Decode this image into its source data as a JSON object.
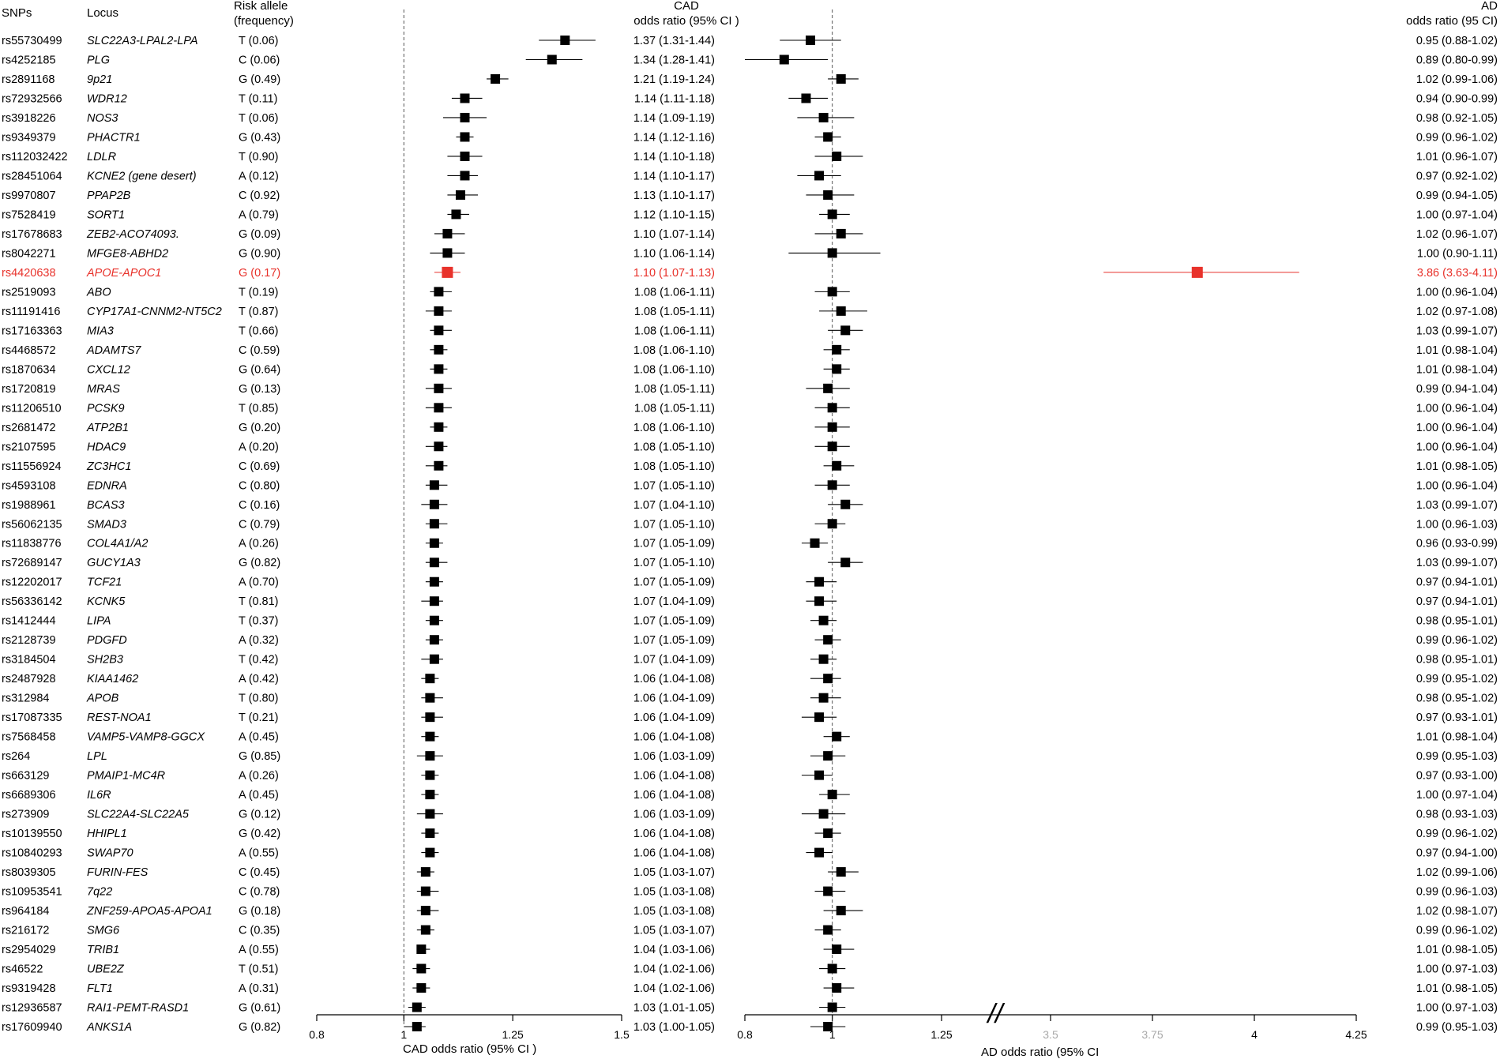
{
  "columns": {
    "snp": "SNPs",
    "locus": "Locus",
    "risk_allele": [
      "Risk allele",
      "(frequency)"
    ],
    "cad_header": [
      "CAD",
      "odds ratio (95% CI )"
    ],
    "ad_header": [
      "AD",
      "odds ratio (95 CI)"
    ]
  },
  "colors": {
    "normal": "#000000",
    "highlight": "#e8322b",
    "reference_line": "#555555"
  },
  "chart_data": [
    {
      "type": "forest",
      "title": "CAD",
      "xlabel": "CAD odds ratio (95% CI    )",
      "xlim": [
        0.8,
        1.5
      ],
      "ticks": [
        0.8,
        1,
        1.25,
        1.5
      ],
      "tick_labels": [
        "0.8",
        "1",
        "1.25",
        "1.5"
      ],
      "reference_line": 1
    },
    {
      "type": "forest",
      "title": "AD",
      "xlabel": "AD odds ratio (95% CI",
      "xlim": [
        0.8,
        4.25
      ],
      "axis_break": "//",
      "ticks": [
        0.8,
        1,
        1.25,
        3.5,
        3.75,
        4,
        4.25
      ],
      "tick_labels": [
        "0.8",
        "1",
        "1.25",
        "3.5",
        "3.75",
        "4",
        "4.25"
      ],
      "reference_line": 1
    }
  ],
  "rows": [
    {
      "snp": "rs55730499",
      "locus": "SLC22A3-LPAL2-LPA",
      "allele": "T (0.06)",
      "cad": [
        1.37,
        1.31,
        1.44
      ],
      "cad_label": "1.37 (1.31-1.44)",
      "ad": [
        0.95,
        0.88,
        1.02
      ],
      "ad_label": "0.95 (0.88-1.02)"
    },
    {
      "snp": "rs4252185",
      "locus": "PLG",
      "allele": "C (0.06)",
      "cad": [
        1.34,
        1.28,
        1.41
      ],
      "cad_label": "1.34 (1.28-1.41)",
      "ad": [
        0.89,
        0.8,
        0.99
      ],
      "ad_label": "0.89 (0.80-0.99)"
    },
    {
      "snp": "rs2891168",
      "locus": "9p21",
      "allele": "G (0.49)",
      "cad": [
        1.21,
        1.19,
        1.24
      ],
      "cad_label": "1.21 (1.19-1.24)",
      "ad": [
        1.02,
        0.99,
        1.06
      ],
      "ad_label": "1.02 (0.99-1.06)"
    },
    {
      "snp": "rs72932566",
      "locus": "WDR12",
      "allele": "T (0.11)",
      "cad": [
        1.14,
        1.11,
        1.18
      ],
      "cad_label": "1.14 (1.11-1.18)",
      "ad": [
        0.94,
        0.9,
        0.99
      ],
      "ad_label": "0.94 (0.90-0.99)"
    },
    {
      "snp": "rs3918226",
      "locus": "NOS3",
      "allele": "T (0.06)",
      "cad": [
        1.14,
        1.09,
        1.19
      ],
      "cad_label": "1.14 (1.09-1.19)",
      "ad": [
        0.98,
        0.92,
        1.05
      ],
      "ad_label": "0.98 (0.92-1.05)"
    },
    {
      "snp": "rs9349379",
      "locus": "PHACTR1",
      "allele": "G (0.43)",
      "cad": [
        1.14,
        1.12,
        1.16
      ],
      "cad_label": "1.14 (1.12-1.16)",
      "ad": [
        0.99,
        0.96,
        1.02
      ],
      "ad_label": "0.99 (0.96-1.02)"
    },
    {
      "snp": "rs112032422",
      "locus": "LDLR",
      "allele": "T (0.90)",
      "cad": [
        1.14,
        1.1,
        1.18
      ],
      "cad_label": "1.14 (1.10-1.18)",
      "ad": [
        1.01,
        0.96,
        1.07
      ],
      "ad_label": "1.01 (0.96-1.07)"
    },
    {
      "snp": "rs28451064",
      "locus": "KCNE2 (gene desert)",
      "allele": "A (0.12)",
      "cad": [
        1.14,
        1.1,
        1.17
      ],
      "cad_label": "1.14 (1.10-1.17)",
      "ad": [
        0.97,
        0.92,
        1.02
      ],
      "ad_label": "0.97 (0.92-1.02)"
    },
    {
      "snp": "rs9970807",
      "locus": "PPAP2B",
      "allele": "C (0.92)",
      "cad": [
        1.13,
        1.1,
        1.17
      ],
      "cad_label": "1.13 (1.10-1.17)",
      "ad": [
        0.99,
        0.94,
        1.05
      ],
      "ad_label": "0.99 (0.94-1.05)"
    },
    {
      "snp": "rs7528419",
      "locus": "SORT1",
      "allele": "A (0.79)",
      "cad": [
        1.12,
        1.1,
        1.15
      ],
      "cad_label": "1.12 (1.10-1.15)",
      "ad": [
        1.0,
        0.97,
        1.04
      ],
      "ad_label": "1.00 (0.97-1.04)"
    },
    {
      "snp": "rs17678683",
      "locus": "ZEB2-ACO74093.",
      "allele": "G (0.09)",
      "cad": [
        1.1,
        1.07,
        1.14
      ],
      "cad_label": "1.10 (1.07-1.14)",
      "ad": [
        1.02,
        0.96,
        1.07
      ],
      "ad_label": "1.02 (0.96-1.07)"
    },
    {
      "snp": "rs8042271",
      "locus": "MFGE8-ABHD2",
      "allele": "G (0.90)",
      "cad": [
        1.1,
        1.06,
        1.14
      ],
      "cad_label": "1.10 (1.06-1.14)",
      "ad": [
        1.0,
        0.9,
        1.11
      ],
      "ad_label": "1.00 (0.90-1.11)"
    },
    {
      "snp": "rs4420638",
      "locus": "APOE-APOC1",
      "allele": "G (0.17)",
      "cad": [
        1.1,
        1.07,
        1.13
      ],
      "cad_label": "1.10 (1.07-1.13)",
      "ad": [
        3.86,
        3.63,
        4.11
      ],
      "ad_label": "3.86 (3.63-4.11)",
      "highlight": true
    },
    {
      "snp": "rs2519093",
      "locus": "ABO",
      "allele": "T (0.19)",
      "cad": [
        1.08,
        1.06,
        1.11
      ],
      "cad_label": "1.08 (1.06-1.11)",
      "ad": [
        1.0,
        0.96,
        1.04
      ],
      "ad_label": "1.00 (0.96-1.04)"
    },
    {
      "snp": "rs11191416",
      "locus": "CYP17A1-CNNM2-NT5C2",
      "allele": "T (0.87)",
      "cad": [
        1.08,
        1.05,
        1.11
      ],
      "cad_label": "1.08 (1.05-1.11)",
      "ad": [
        1.02,
        0.97,
        1.08
      ],
      "ad_label": "1.02 (0.97-1.08)"
    },
    {
      "snp": "rs17163363",
      "locus": "MIA3",
      "allele": "T (0.66)",
      "cad": [
        1.08,
        1.06,
        1.11
      ],
      "cad_label": "1.08 (1.06-1.11)",
      "ad": [
        1.03,
        0.99,
        1.07
      ],
      "ad_label": "1.03 (0.99-1.07)"
    },
    {
      "snp": "rs4468572",
      "locus": "ADAMTS7",
      "allele": "C (0.59)",
      "cad": [
        1.08,
        1.06,
        1.1
      ],
      "cad_label": "1.08 (1.06-1.10)",
      "ad": [
        1.01,
        0.98,
        1.04
      ],
      "ad_label": "1.01 (0.98-1.04)"
    },
    {
      "snp": "rs1870634",
      "locus": "CXCL12",
      "allele": "G (0.64)",
      "cad": [
        1.08,
        1.06,
        1.1
      ],
      "cad_label": "1.08 (1.06-1.10)",
      "ad": [
        1.01,
        0.98,
        1.04
      ],
      "ad_label": "1.01 (0.98-1.04)"
    },
    {
      "snp": "rs1720819",
      "locus": "MRAS",
      "allele": "G (0.13)",
      "cad": [
        1.08,
        1.05,
        1.11
      ],
      "cad_label": "1.08 (1.05-1.11)",
      "ad": [
        0.99,
        0.94,
        1.04
      ],
      "ad_label": "0.99 (0.94-1.04)"
    },
    {
      "snp": "rs11206510",
      "locus": "PCSK9",
      "allele": "T (0.85)",
      "cad": [
        1.08,
        1.05,
        1.11
      ],
      "cad_label": "1.08 (1.05-1.11)",
      "ad": [
        1.0,
        0.96,
        1.04
      ],
      "ad_label": "1.00 (0.96-1.04)"
    },
    {
      "snp": "rs2681472",
      "locus": "ATP2B1",
      "allele": "G (0.20)",
      "cad": [
        1.08,
        1.06,
        1.1
      ],
      "cad_label": "1.08 (1.06-1.10)",
      "ad": [
        1.0,
        0.96,
        1.04
      ],
      "ad_label": "1.00 (0.96-1.04)"
    },
    {
      "snp": "rs2107595",
      "locus": "HDAC9",
      "allele": "A (0.20)",
      "cad": [
        1.08,
        1.05,
        1.1
      ],
      "cad_label": "1.08 (1.05-1.10)",
      "ad": [
        1.0,
        0.96,
        1.04
      ],
      "ad_label": "1.00 (0.96-1.04)"
    },
    {
      "snp": "rs11556924",
      "locus": "ZC3HC1",
      "allele": "C (0.69)",
      "cad": [
        1.08,
        1.05,
        1.1
      ],
      "cad_label": "1.08 (1.05-1.10)",
      "ad": [
        1.01,
        0.98,
        1.05
      ],
      "ad_label": "1.01 (0.98-1.05)"
    },
    {
      "snp": "rs4593108",
      "locus": "EDNRA",
      "allele": "C (0.80)",
      "cad": [
        1.07,
        1.05,
        1.1
      ],
      "cad_label": "1.07 (1.05-1.10)",
      "ad": [
        1.0,
        0.96,
        1.04
      ],
      "ad_label": "1.00 (0.96-1.04)"
    },
    {
      "snp": "rs1988961",
      "locus": "BCAS3",
      "allele": "C (0.16)",
      "cad": [
        1.07,
        1.04,
        1.1
      ],
      "cad_label": "1.07 (1.04-1.10)",
      "ad": [
        1.03,
        0.99,
        1.07
      ],
      "ad_label": "1.03 (0.99-1.07)"
    },
    {
      "snp": "rs56062135",
      "locus": "SMAD3",
      "allele": "C (0.79)",
      "cad": [
        1.07,
        1.05,
        1.1
      ],
      "cad_label": "1.07 (1.05-1.10)",
      "ad": [
        1.0,
        0.96,
        1.03
      ],
      "ad_label": "1.00 (0.96-1.03)"
    },
    {
      "snp": "rs11838776",
      "locus": "COL4A1/A2",
      "allele": "A (0.26)",
      "cad": [
        1.07,
        1.05,
        1.09
      ],
      "cad_label": "1.07 (1.05-1.09)",
      "ad": [
        0.96,
        0.93,
        0.99
      ],
      "ad_label": "0.96 (0.93-0.99)"
    },
    {
      "snp": "rs72689147",
      "locus": "GUCY1A3",
      "allele": "G (0.82)",
      "cad": [
        1.07,
        1.05,
        1.1
      ],
      "cad_label": "1.07 (1.05-1.10)",
      "ad": [
        1.03,
        0.99,
        1.07
      ],
      "ad_label": "1.03 (0.99-1.07)"
    },
    {
      "snp": "rs12202017",
      "locus": "TCF21",
      "allele": "A (0.70)",
      "cad": [
        1.07,
        1.05,
        1.09
      ],
      "cad_label": "1.07 (1.05-1.09)",
      "ad": [
        0.97,
        0.94,
        1.01
      ],
      "ad_label": "0.97 (0.94-1.01)"
    },
    {
      "snp": "rs56336142",
      "locus": "KCNK5",
      "allele": "T (0.81)",
      "cad": [
        1.07,
        1.04,
        1.09
      ],
      "cad_label": "1.07 (1.04-1.09)",
      "ad": [
        0.97,
        0.94,
        1.01
      ],
      "ad_label": "0.97 (0.94-1.01)"
    },
    {
      "snp": "rs1412444",
      "locus": "LIPA",
      "allele": "T (0.37)",
      "cad": [
        1.07,
        1.05,
        1.09
      ],
      "cad_label": "1.07 (1.05-1.09)",
      "ad": [
        0.98,
        0.95,
        1.01
      ],
      "ad_label": "0.98 (0.95-1.01)"
    },
    {
      "snp": "rs2128739",
      "locus": "PDGFD",
      "allele": "A (0.32)",
      "cad": [
        1.07,
        1.05,
        1.09
      ],
      "cad_label": "1.07 (1.05-1.09)",
      "ad": [
        0.99,
        0.96,
        1.02
      ],
      "ad_label": "0.99 (0.96-1.02)"
    },
    {
      "snp": "rs3184504",
      "locus": "SH2B3",
      "allele": "T (0.42)",
      "cad": [
        1.07,
        1.04,
        1.09
      ],
      "cad_label": "1.07 (1.04-1.09)",
      "ad": [
        0.98,
        0.95,
        1.01
      ],
      "ad_label": "0.98 (0.95-1.01)"
    },
    {
      "snp": "rs2487928",
      "locus": "KIAA1462",
      "allele": "A (0.42)",
      "cad": [
        1.06,
        1.04,
        1.08
      ],
      "cad_label": "1.06 (1.04-1.08)",
      "ad": [
        0.99,
        0.95,
        1.02
      ],
      "ad_label": "0.99 (0.95-1.02)"
    },
    {
      "snp": "rs312984",
      "locus": "APOB",
      "allele": "T (0.80)",
      "cad": [
        1.06,
        1.04,
        1.09
      ],
      "cad_label": "1.06 (1.04-1.09)",
      "ad": [
        0.98,
        0.95,
        1.02
      ],
      "ad_label": "0.98 (0.95-1.02)"
    },
    {
      "snp": "rs17087335",
      "locus": "REST-NOA1",
      "allele": "T (0.21)",
      "cad": [
        1.06,
        1.04,
        1.09
      ],
      "cad_label": "1.06 (1.04-1.09)",
      "ad": [
        0.97,
        0.93,
        1.01
      ],
      "ad_label": "0.97 (0.93-1.01)"
    },
    {
      "snp": "rs7568458",
      "locus": "VAMP5-VAMP8-GGCX",
      "allele": "A (0.45)",
      "cad": [
        1.06,
        1.04,
        1.08
      ],
      "cad_label": "1.06 (1.04-1.08)",
      "ad": [
        1.01,
        0.98,
        1.04
      ],
      "ad_label": "1.01 (0.98-1.04)"
    },
    {
      "snp": "rs264",
      "locus": "LPL",
      "allele": "G (0.85)",
      "cad": [
        1.06,
        1.03,
        1.09
      ],
      "cad_label": "1.06 (1.03-1.09)",
      "ad": [
        0.99,
        0.95,
        1.03
      ],
      "ad_label": "0.99 (0.95-1.03)"
    },
    {
      "snp": "rs663129",
      "locus": "PMAIP1-MC4R",
      "allele": "A (0.26)",
      "cad": [
        1.06,
        1.04,
        1.08
      ],
      "cad_label": "1.06 (1.04-1.08)",
      "ad": [
        0.97,
        0.93,
        1.0
      ],
      "ad_label": "0.97 (0.93-1.00)"
    },
    {
      "snp": "rs6689306",
      "locus": "IL6R",
      "allele": "A (0.45)",
      "cad": [
        1.06,
        1.04,
        1.08
      ],
      "cad_label": "1.06 (1.04-1.08)",
      "ad": [
        1.0,
        0.97,
        1.04
      ],
      "ad_label": "1.00 (0.97-1.04)"
    },
    {
      "snp": "rs273909",
      "locus": "SLC22A4-SLC22A5",
      "allele": "G (0.12)",
      "cad": [
        1.06,
        1.03,
        1.09
      ],
      "cad_label": "1.06 (1.03-1.09)",
      "ad": [
        0.98,
        0.93,
        1.03
      ],
      "ad_label": "0.98 (0.93-1.03)"
    },
    {
      "snp": "rs10139550",
      "locus": "HHIPL1",
      "allele": "G (0.42)",
      "cad": [
        1.06,
        1.04,
        1.08
      ],
      "cad_label": "1.06 (1.04-1.08)",
      "ad": [
        0.99,
        0.96,
        1.02
      ],
      "ad_label": "0.99 (0.96-1.02)"
    },
    {
      "snp": "rs10840293",
      "locus": "SWAP70",
      "allele": "A (0.55)",
      "cad": [
        1.06,
        1.04,
        1.08
      ],
      "cad_label": "1.06 (1.04-1.08)",
      "ad": [
        0.97,
        0.94,
        1.0
      ],
      "ad_label": "0.97 (0.94-1.00)"
    },
    {
      "snp": "rs8039305",
      "locus": "FURIN-FES",
      "allele": "C (0.45)",
      "cad": [
        1.05,
        1.03,
        1.07
      ],
      "cad_label": "1.05 (1.03-1.07)",
      "ad": [
        1.02,
        0.99,
        1.06
      ],
      "ad_label": "1.02 (0.99-1.06)"
    },
    {
      "snp": "rs10953541",
      "locus": "7q22",
      "allele": "C (0.78)",
      "cad": [
        1.05,
        1.03,
        1.08
      ],
      "cad_label": "1.05 (1.03-1.08)",
      "ad": [
        0.99,
        0.96,
        1.03
      ],
      "ad_label": "0.99 (0.96-1.03)"
    },
    {
      "snp": "rs964184",
      "locus": "ZNF259-APOA5-APOA1",
      "allele": "G (0.18)",
      "cad": [
        1.05,
        1.03,
        1.08
      ],
      "cad_label": "1.05 (1.03-1.08)",
      "ad": [
        1.02,
        0.98,
        1.07
      ],
      "ad_label": "1.02 (0.98-1.07)"
    },
    {
      "snp": "rs216172",
      "locus": "SMG6",
      "allele": "C (0.35)",
      "cad": [
        1.05,
        1.03,
        1.07
      ],
      "cad_label": "1.05 (1.03-1.07)",
      "ad": [
        0.99,
        0.96,
        1.02
      ],
      "ad_label": "0.99 (0.96-1.02)"
    },
    {
      "snp": "rs2954029",
      "locus": "TRIB1",
      "allele": "A (0.55)",
      "cad": [
        1.04,
        1.03,
        1.06
      ],
      "cad_label": "1.04 (1.03-1.06)",
      "ad": [
        1.01,
        0.98,
        1.05
      ],
      "ad_label": "1.01 (0.98-1.05)"
    },
    {
      "snp": "rs46522",
      "locus": "UBE2Z",
      "allele": "T (0.51)",
      "cad": [
        1.04,
        1.02,
        1.06
      ],
      "cad_label": "1.04 (1.02-1.06)",
      "ad": [
        1.0,
        0.97,
        1.03
      ],
      "ad_label": "1.00 (0.97-1.03)"
    },
    {
      "snp": "rs9319428",
      "locus": "FLT1",
      "allele": "A (0.31)",
      "cad": [
        1.04,
        1.02,
        1.06
      ],
      "cad_label": "1.04 (1.02-1.06)",
      "ad": [
        1.01,
        0.98,
        1.05
      ],
      "ad_label": "1.01 (0.98-1.05)"
    },
    {
      "snp": "rs12936587",
      "locus": "RAI1-PEMT-RASD1",
      "allele": "G (0.61)",
      "cad": [
        1.03,
        1.01,
        1.05
      ],
      "cad_label": "1.03 (1.01-1.05)",
      "ad": [
        1.0,
        0.97,
        1.03
      ],
      "ad_label": "1.00 (0.97-1.03)"
    },
    {
      "snp": "rs17609940",
      "locus": "ANKS1A",
      "allele": "G (0.82)",
      "cad": [
        1.03,
        1.0,
        1.05
      ],
      "cad_label": "1.03 (1.00-1.05)",
      "ad": [
        0.99,
        0.95,
        1.03
      ],
      "ad_label": "0.99 (0.95-1.03)"
    }
  ]
}
